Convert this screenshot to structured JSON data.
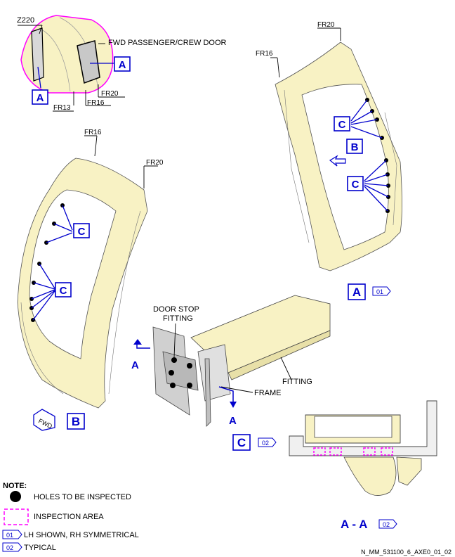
{
  "labels": {
    "z220": "Z220",
    "fwd_door": "FWD PASSENGER/CREW DOOR",
    "fr13": "FR13",
    "fr16": "FR16",
    "fr20": "FR20",
    "door_stop_1": "DOOR STOP",
    "door_stop_2": "FITTING",
    "fitting": "FITTING",
    "frame": "FRAME",
    "fwd_arrow": "FWD"
  },
  "callouts": {
    "a": "A",
    "b": "B",
    "c": "C",
    "section": "A - A"
  },
  "refs": {
    "r01": "01",
    "r02": "02"
  },
  "note": {
    "title": "NOTE:",
    "holes": "HOLES TO BE INSPECTED",
    "area": "INSPECTION AREA",
    "lh": "LH SHOWN, RH SYMMETRICAL",
    "typical": "TYPICAL"
  },
  "figure_id": "N_MM_531100_6_AXE0_01_02",
  "colors": {
    "callout_blue": "#0000cc",
    "frame_cream": "#f8f2c4",
    "inspection_magenta": "#ff00ff",
    "door_gray": "#c8c8c8"
  }
}
